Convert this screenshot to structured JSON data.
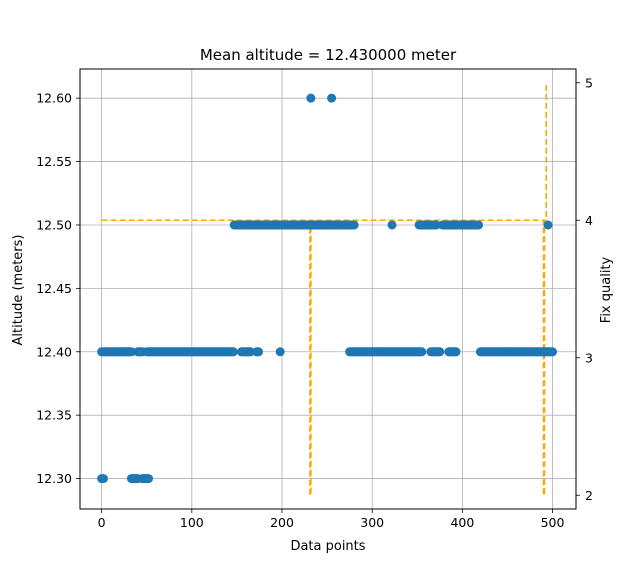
{
  "chart_data": {
    "type": "scatter",
    "title": "Mean altitude = 12.430000 meter",
    "xlabel": "Data points",
    "ylabel": "Altitude (meters)",
    "y2label": "Fix quality",
    "xlim": [
      -24,
      526
    ],
    "ylim": [
      12.276,
      12.623
    ],
    "y2lim": [
      1.9,
      5.1
    ],
    "xticks": [
      0,
      100,
      200,
      300,
      400,
      500
    ],
    "yticks": [
      12.3,
      12.35,
      12.4,
      12.45,
      12.5,
      12.55,
      12.6
    ],
    "y2ticks": [
      2,
      3,
      4,
      5
    ],
    "grid": true,
    "colors": {
      "points": "#1f77b4",
      "fix_line": "#ffa500",
      "grid": "#b0b0b0"
    },
    "altitude_segments": [
      {
        "x_start": 0,
        "x_end": 2,
        "y": 12.3
      },
      {
        "x_start": 33,
        "x_end": 40,
        "y": 12.3
      },
      {
        "x_start": 45,
        "x_end": 52,
        "y": 12.3
      },
      {
        "x_start": 0,
        "x_end": 33,
        "y": 12.4
      },
      {
        "x_start": 40,
        "x_end": 45,
        "y": 12.4
      },
      {
        "x_start": 50,
        "x_end": 146,
        "y": 12.4
      },
      {
        "x_start": 155,
        "x_end": 165,
        "y": 12.4
      },
      {
        "x_start": 172,
        "x_end": 174,
        "y": 12.4
      },
      {
        "x_start": 198,
        "x_end": 198,
        "y": 12.4
      },
      {
        "x_start": 275,
        "x_end": 355,
        "y": 12.4
      },
      {
        "x_start": 365,
        "x_end": 375,
        "y": 12.4
      },
      {
        "x_start": 385,
        "x_end": 393,
        "y": 12.4
      },
      {
        "x_start": 420,
        "x_end": 500,
        "y": 12.4
      },
      {
        "x_start": 147,
        "x_end": 280,
        "y": 12.5
      },
      {
        "x_start": 322,
        "x_end": 322,
        "y": 12.5
      },
      {
        "x_start": 352,
        "x_end": 371,
        "y": 12.5
      },
      {
        "x_start": 378,
        "x_end": 418,
        "y": 12.5
      },
      {
        "x_start": 495,
        "x_end": 495,
        "y": 12.5
      },
      {
        "x_start": 232,
        "x_end": 232,
        "y": 12.6
      },
      {
        "x_start": 255,
        "x_end": 255,
        "y": 12.6
      }
    ],
    "fix_quality_series": {
      "name": "",
      "x": [
        0,
        231,
        231,
        232,
        232,
        490,
        490,
        491,
        491,
        493,
        493
      ],
      "y": [
        4,
        4,
        2,
        2,
        4,
        4,
        2,
        2,
        4,
        4,
        5
      ]
    }
  }
}
